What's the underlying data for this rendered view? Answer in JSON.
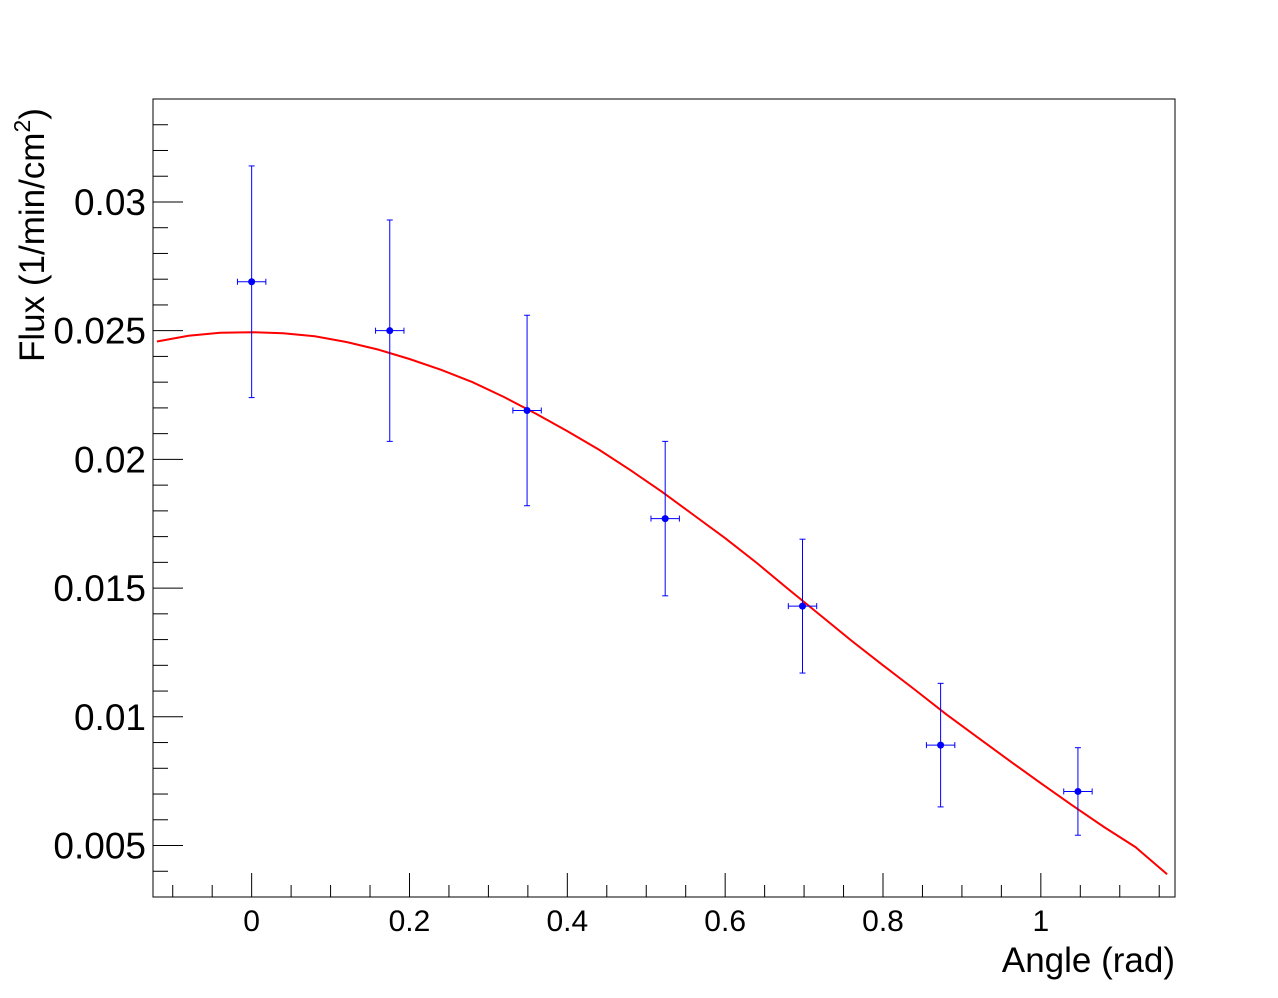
{
  "chart_data": {
    "type": "scatter",
    "xlabel": "Angle (rad)",
    "ylabel": "Flux (1/min/cm",
    "ylabel_sup": "2",
    "ylabel_close": ")",
    "xlim": [
      -0.125,
      1.17
    ],
    "ylim": [
      0.003,
      0.034
    ],
    "x_ticks": [
      {
        "value": 0,
        "label": "0"
      },
      {
        "value": 0.2,
        "label": "0.2"
      },
      {
        "value": 0.4,
        "label": "0.4"
      },
      {
        "value": 0.6,
        "label": "0.6"
      },
      {
        "value": 0.8,
        "label": "0.8"
      },
      {
        "value": 1.0,
        "label": "1"
      }
    ],
    "y_ticks": [
      {
        "value": 0.005,
        "label": "0.005"
      },
      {
        "value": 0.01,
        "label": "0.01"
      },
      {
        "value": 0.015,
        "label": "0.015"
      },
      {
        "value": 0.02,
        "label": "0.02"
      },
      {
        "value": 0.025,
        "label": "0.025"
      },
      {
        "value": 0.03,
        "label": "0.03"
      }
    ],
    "series": [
      {
        "kind": "points-with-errors",
        "color": "#0000ff",
        "points": [
          {
            "x": 0.0,
            "y": 0.0269,
            "xerr": 0.018,
            "yerr": 0.0045
          },
          {
            "x": 0.175,
            "y": 0.025,
            "xerr": 0.018,
            "yerr": 0.0043
          },
          {
            "x": 0.349,
            "y": 0.0219,
            "xerr": 0.018,
            "yerr": 0.0037
          },
          {
            "x": 0.524,
            "y": 0.0177,
            "xerr": 0.018,
            "yerr": 0.003
          },
          {
            "x": 0.698,
            "y": 0.0143,
            "xerr": 0.018,
            "yerr": 0.0026
          },
          {
            "x": 0.873,
            "y": 0.0089,
            "xerr": 0.018,
            "yerr": 0.0024
          },
          {
            "x": 1.047,
            "y": 0.0071,
            "xerr": 0.018,
            "yerr": 0.0017
          }
        ]
      },
      {
        "kind": "fit-curve",
        "color": "#ff0000",
        "x": [
          -0.12,
          -0.08,
          -0.04,
          0.0,
          0.04,
          0.08,
          0.12,
          0.16,
          0.2,
          0.24,
          0.28,
          0.32,
          0.36,
          0.4,
          0.44,
          0.48,
          0.52,
          0.56,
          0.6,
          0.64,
          0.68,
          0.72,
          0.76,
          0.8,
          0.84,
          0.88,
          0.92,
          0.96,
          1.0,
          1.04,
          1.08,
          1.12,
          1.16
        ],
        "y": [
          0.02458,
          0.0248,
          0.02492,
          0.02494,
          0.0249,
          0.02478,
          0.02456,
          0.02427,
          0.0239,
          0.02348,
          0.023,
          0.02242,
          0.02178,
          0.0211,
          0.02038,
          0.01958,
          0.01874,
          0.01784,
          0.01694,
          0.01598,
          0.01496,
          0.01396,
          0.01296,
          0.012,
          0.01106,
          0.0101,
          0.0092,
          0.0083,
          0.00742,
          0.00656,
          0.00572,
          0.00494,
          0.00388
        ]
      }
    ]
  }
}
